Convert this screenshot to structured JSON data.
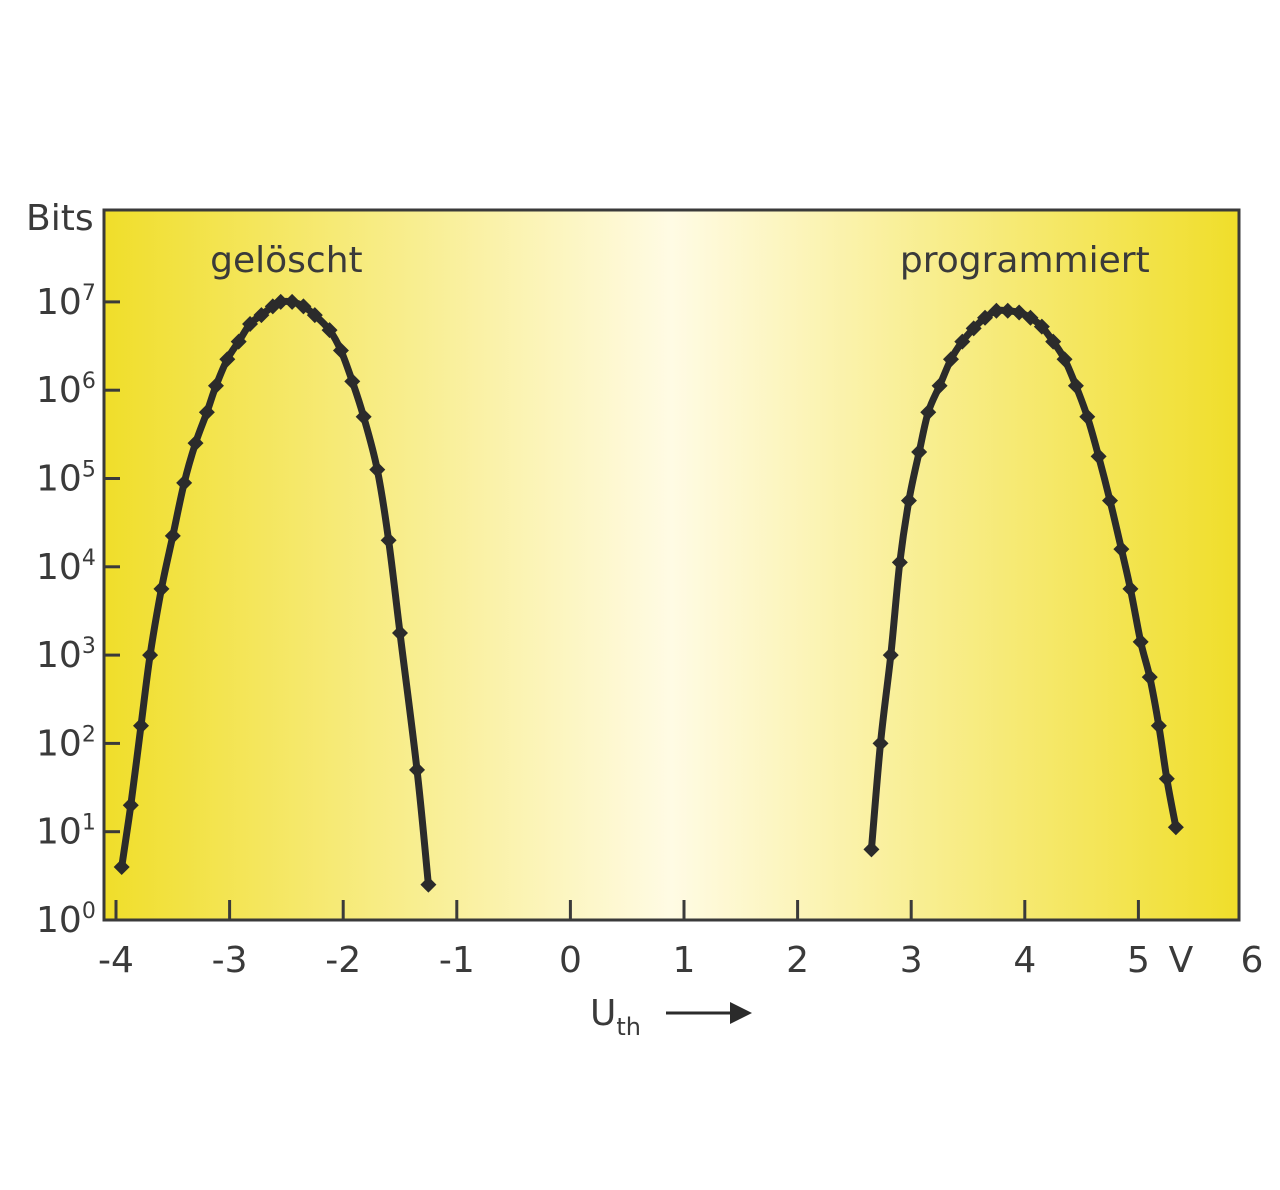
{
  "chart_data": {
    "type": "line",
    "xlabel": "U",
    "xlabel_subscript": "th",
    "x_unit": "V",
    "ylabel": "Bits",
    "y_scale": "log",
    "xlim": [
      -4.1,
      6
    ],
    "ylim_exponent": [
      0,
      8
    ],
    "x_ticks": [
      "-4",
      "-3",
      "-2",
      "-1",
      "0",
      "1",
      "2",
      "3",
      "4",
      "5",
      "6"
    ],
    "y_ticks": [
      {
        "base": "10",
        "exp": "0"
      },
      {
        "base": "10",
        "exp": "1"
      },
      {
        "base": "10",
        "exp": "2"
      },
      {
        "base": "10",
        "exp": "3"
      },
      {
        "base": "10",
        "exp": "4"
      },
      {
        "base": "10",
        "exp": "5"
      },
      {
        "base": "10",
        "exp": "6"
      },
      {
        "base": "10",
        "exp": "7"
      }
    ],
    "grid": false,
    "series": [
      {
        "name": "gelöscht",
        "x": [
          -3.95,
          -3.87,
          -3.78,
          -3.7,
          -3.6,
          -3.5,
          -3.4,
          -3.3,
          -3.2,
          -3.12,
          -3.02,
          -2.92,
          -2.82,
          -2.72,
          -2.62,
          -2.55,
          -2.45,
          -2.35,
          -2.25,
          -2.12,
          -2.02,
          -1.92,
          -1.82,
          -1.7,
          -1.6,
          -1.5,
          -1.35,
          -1.25
        ],
        "y": [
          0.6,
          1.3,
          2.2,
          3.0,
          3.75,
          4.35,
          4.95,
          5.4,
          5.75,
          6.05,
          6.35,
          6.55,
          6.75,
          6.85,
          6.95,
          7.0,
          7.0,
          6.95,
          6.85,
          6.68,
          6.45,
          6.1,
          5.7,
          5.1,
          4.3,
          3.25,
          1.7,
          0.4
        ]
      },
      {
        "name": "programmiert",
        "x": [
          2.65,
          2.73,
          2.82,
          2.9,
          2.98,
          3.07,
          3.15,
          3.25,
          3.35,
          3.45,
          3.55,
          3.65,
          3.75,
          3.85,
          3.95,
          4.05,
          4.15,
          4.25,
          4.35,
          4.45,
          4.55,
          4.65,
          4.75,
          4.85,
          4.93,
          5.02,
          5.1,
          5.18,
          5.25,
          5.33
        ],
        "y": [
          0.8,
          2.0,
          3.0,
          4.05,
          4.75,
          5.3,
          5.75,
          6.05,
          6.35,
          6.55,
          6.7,
          6.82,
          6.9,
          6.9,
          6.88,
          6.82,
          6.72,
          6.55,
          6.35,
          6.05,
          5.7,
          5.25,
          4.75,
          4.2,
          3.75,
          3.15,
          2.75,
          2.2,
          1.6,
          1.05
        ]
      }
    ],
    "annotations": [
      "gelöscht",
      "programmiert"
    ],
    "colors": {
      "line": "#2b2b2b",
      "panel_edge": "#f0de2a",
      "panel_center": "#fffbe4",
      "frame": "#3a3a3a"
    }
  }
}
